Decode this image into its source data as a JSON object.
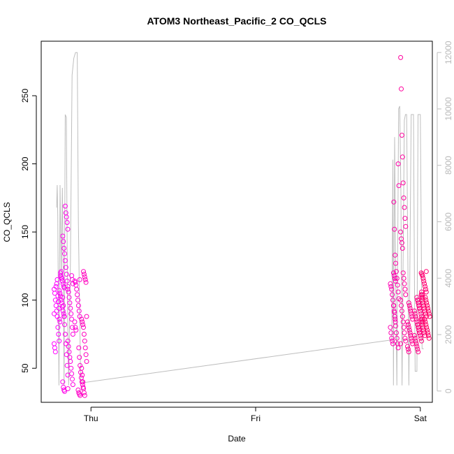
{
  "chart_data": {
    "type": "scatter",
    "title": "ATOM3 Northeast_Pacific_2 CO_QCLS",
    "xlabel": "Date",
    "ylabel": "CO_QCLS",
    "x_ticks": [
      "Thu",
      "Fri",
      "Sat"
    ],
    "x_range": [
      "Wed 16:45",
      "Sat 01:45"
    ],
    "y_left": {
      "range": [
        25,
        290
      ],
      "ticks": [
        50,
        100,
        150,
        200,
        250
      ]
    },
    "y_right": {
      "range": [
        -400,
        12400
      ],
      "ticks": [
        0,
        2000,
        4000,
        6000,
        8000,
        10000,
        12000
      ],
      "color": "#bebebe"
    },
    "grid": false,
    "legend": "none",
    "colors": {
      "points_low": "#ff00ff",
      "points_high": "#ff0066",
      "altitude_line": "#bebebe"
    },
    "series": [
      {
        "marker": "open-circle",
        "axis": "left",
        "clusters": [
          {
            "time": "Wed 19:00",
            "values": [
              108,
              105,
              100,
              96,
              92,
              88,
              80,
              75,
              70,
              68,
              65,
              62,
              110,
              112,
              115,
              103,
              99,
              94,
              90
            ]
          },
          {
            "time": "Wed 19:45",
            "values": [
              118,
              117,
              116,
              114,
              112,
              110,
              109,
              107,
              105,
              103,
              100,
              98,
              95,
              92,
              90,
              88,
              86,
              84,
              120,
              121
            ]
          },
          {
            "time": "Wed 20:15",
            "values": [
              169,
              164,
              161,
              157,
              152,
              147,
              143,
              138,
              134,
              129,
              124,
              119,
              114,
              108,
              102,
              96,
              88,
              82,
              75,
              68,
              60,
              52,
              45,
              40,
              36,
              34,
              33
            ]
          },
          {
            "time": "Wed 21:00",
            "values": [
              118,
              115,
              112,
              110,
              106,
              102,
              98,
              94,
              90,
              86,
              80,
              75,
              70,
              66,
              62,
              58,
              55,
              50,
              46,
              42,
              38,
              35
            ]
          },
          {
            "time": "Wed 22:00",
            "values": [
              115,
              114,
              113,
              111,
              108,
              104,
              100,
              96,
              92,
              88,
              84,
              80,
              78
            ]
          },
          {
            "time": "Wed 22:30",
            "values": [
              65,
              58,
              52,
              47,
              43,
              40,
              38,
              36,
              34,
              32,
              31,
              30
            ]
          },
          {
            "time": "Wed 23:00",
            "values": [
              121,
              119,
              117,
              115,
              113,
              88,
              86,
              84,
              82,
              80,
              75,
              70,
              65,
              60,
              55,
              50,
              45,
              40,
              35,
              32,
              30
            ]
          },
          {
            "time": "Fri 20:00",
            "values": [
              120,
              118,
              116,
              114,
              112,
              110,
              108,
              104,
              100,
              96,
              92,
              88,
              84,
              80,
              76,
              72,
              70,
              68
            ]
          },
          {
            "time": "Fri 20:30",
            "values": [
              200,
              184,
              172,
              152,
              133,
              127,
              121,
              116,
              111,
              106,
              101,
              96,
              91,
              86,
              81,
              76,
              72,
              68,
              65
            ]
          },
          {
            "time": "Fri 21:30",
            "values": [
              278,
              255,
              221,
              205,
              186,
              175,
              168,
              160,
              154,
              150,
              145,
              142,
              138,
              120,
              116,
              112,
              108,
              104,
              100,
              96,
              92,
              88,
              84,
              80,
              76,
              72,
              70,
              68
            ]
          },
          {
            "time": "Fri 22:30",
            "values": [
              98,
              96,
              94,
              92,
              90,
              88,
              86,
              84,
              82,
              80,
              78,
              76,
              74,
              72,
              70,
              68,
              66,
              64,
              62
            ]
          },
          {
            "time": "Fri 23:30",
            "values": [
              102,
              100,
              98,
              96,
              94,
              92,
              90,
              88,
              86,
              84,
              82,
              80,
              78,
              76,
              74,
              72,
              70,
              68,
              66,
              64,
              62
            ]
          },
          {
            "time": "Sat 00:00",
            "values": [
              106,
              104,
              102,
              100,
              98,
              96,
              94,
              92,
              90,
              88,
              86,
              84,
              82,
              80,
              78,
              76,
              74,
              72,
              70
            ]
          },
          {
            "time": "Sat 00:30",
            "values": [
              121,
              120,
              119,
              118,
              116,
              114,
              112,
              110,
              108,
              106,
              104,
              102,
              100,
              98,
              96,
              94,
              92,
              90,
              88,
              86,
              84,
              82,
              80,
              78,
              76,
              74
            ]
          },
          {
            "time": "Sat 01:00",
            "values": [
              102,
              100,
              98,
              96,
              94,
              92,
              90,
              88,
              86,
              84,
              82,
              80,
              78,
              76,
              74,
              72
            ]
          }
        ]
      },
      {
        "name": "",
        "marker": "line",
        "axis": "right",
        "points": [
          [
            "Wed 19:00",
            6500
          ],
          [
            "Wed 19:05",
            7300
          ],
          [
            "Wed 19:10",
            6200
          ],
          [
            "Wed 19:20",
            200
          ],
          [
            "Wed 19:30",
            7300
          ],
          [
            "Wed 19:40",
            4000
          ],
          [
            "Wed 19:50",
            7200
          ],
          [
            "Wed 20:00",
            3500
          ],
          [
            "Wed 20:05",
            200
          ],
          [
            "Wed 20:15",
            9800
          ],
          [
            "Wed 20:25",
            9700
          ],
          [
            "Wed 20:35",
            3000
          ],
          [
            "Wed 20:45",
            200
          ],
          [
            "Wed 21:00",
            4500
          ],
          [
            "Wed 21:15",
            11200
          ],
          [
            "Wed 21:30",
            11800
          ],
          [
            "Wed 21:45",
            12000
          ],
          [
            "Wed 22:00",
            12000
          ],
          [
            "Wed 22:10",
            6000
          ],
          [
            "Wed 22:20",
            3000
          ],
          [
            "Wed 22:30",
            400
          ],
          [
            "Wed 23:00",
            300
          ],
          [
            "Fri 19:30",
            1800
          ],
          [
            "Fri 19:50",
            1800
          ],
          [
            "Fri 20:00",
            8200
          ],
          [
            "Fri 20:05",
            200
          ],
          [
            "Fri 20:15",
            9000
          ],
          [
            "Fri 20:25",
            4000
          ],
          [
            "Fri 20:35",
            200
          ],
          [
            "Fri 20:50",
            10000
          ],
          [
            "Fri 21:00",
            10100
          ],
          [
            "Fri 21:10",
            7000
          ],
          [
            "Fri 21:20",
            200
          ],
          [
            "Fri 21:40",
            9600
          ],
          [
            "Fri 21:50",
            9800
          ],
          [
            "Fri 22:00",
            9800
          ],
          [
            "Fri 22:10",
            5000
          ],
          [
            "Fri 22:20",
            200
          ],
          [
            "Fri 22:40",
            9800
          ],
          [
            "Fri 22:50",
            9800
          ],
          [
            "Fri 23:00",
            9800
          ],
          [
            "Fri 23:10",
            3000
          ],
          [
            "Fri 23:15",
            700
          ],
          [
            "Fri 23:30",
            700
          ],
          [
            "Fri 23:40",
            9800
          ],
          [
            "Fri 23:50",
            9800
          ],
          [
            "Sat 00:00",
            9800
          ],
          [
            "Sat 00:15",
            1500
          ],
          [
            "Sat 00:30",
            1500
          ]
        ]
      }
    ]
  }
}
